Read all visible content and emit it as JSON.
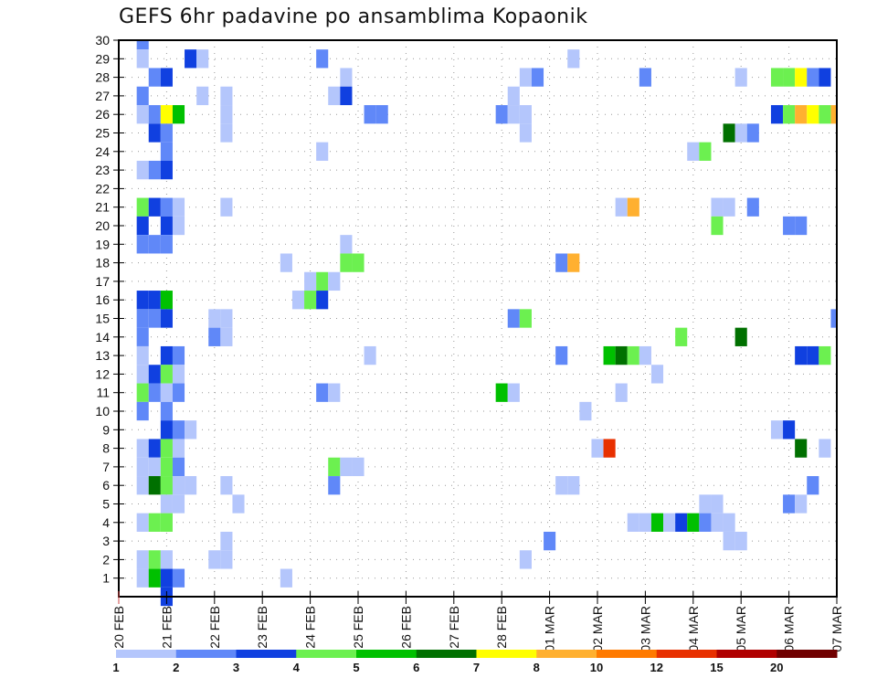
{
  "chart_data": {
    "type": "heatmap",
    "title": "GEFS 6hr padavine po ansamblima Kopaonik",
    "xlabel": "",
    "ylabel": "",
    "x_step_hours": 6,
    "x_ticks": [
      "20 FEB",
      "21 FEB",
      "22 FEB",
      "23 FEB",
      "24 FEB",
      "25 FEB",
      "26 FEB",
      "27 FEB",
      "28 FEB",
      "01 MAR",
      "02 MAR",
      "03 MAR",
      "04 MAR",
      "05 MAR",
      "06 MAR",
      "07 MAR"
    ],
    "y_ticks": [
      1,
      2,
      3,
      4,
      5,
      6,
      7,
      8,
      9,
      10,
      11,
      12,
      13,
      14,
      15,
      16,
      17,
      18,
      19,
      20,
      21,
      22,
      23,
      24,
      25,
      26,
      27,
      28,
      29,
      30
    ],
    "ylim": [
      0,
      30
    ],
    "xlim_steps": [
      0,
      60
    ],
    "grid": true,
    "legend": {
      "placement": "bottom",
      "levels": [
        "1",
        "2",
        "3",
        "4",
        "5",
        "6",
        "7",
        "8",
        "10",
        "12",
        "15",
        "20"
      ],
      "colors": [
        "#b4c6fc",
        "#6088f8",
        "#1040e0",
        "#6cf050",
        "#00c000",
        "#007000",
        "#ffff00",
        "#ffb030",
        "#ff7a00",
        "#e83000",
        "#b00000",
        "#700000"
      ]
    },
    "cells_note": "each cell: [6hr step from 20 FEB 00Z, ensemble member row, precipitation class lower bound]",
    "cells": [
      [
        2,
        30,
        2
      ],
      [
        2,
        29,
        1
      ],
      [
        6,
        29,
        3
      ],
      [
        7,
        29,
        1
      ],
      [
        17,
        29,
        2
      ],
      [
        38,
        29,
        1
      ],
      [
        3,
        28,
        2
      ],
      [
        4,
        28,
        3
      ],
      [
        19,
        28,
        1
      ],
      [
        34,
        28,
        1
      ],
      [
        35,
        28,
        2
      ],
      [
        44,
        28,
        2
      ],
      [
        52,
        28,
        1
      ],
      [
        55,
        28,
        4
      ],
      [
        56,
        28,
        4
      ],
      [
        57,
        28,
        7
      ],
      [
        58,
        28,
        2
      ],
      [
        59,
        28,
        3
      ],
      [
        2,
        27,
        2
      ],
      [
        7,
        27,
        1
      ],
      [
        9,
        27,
        1
      ],
      [
        18,
        27,
        1
      ],
      [
        19,
        27,
        3
      ],
      [
        33,
        27,
        1
      ],
      [
        2,
        26,
        1
      ],
      [
        3,
        26,
        2
      ],
      [
        4,
        26,
        7
      ],
      [
        5,
        26,
        5
      ],
      [
        9,
        26,
        1
      ],
      [
        21,
        26,
        2
      ],
      [
        22,
        26,
        2
      ],
      [
        32,
        26,
        2
      ],
      [
        33,
        26,
        1
      ],
      [
        34,
        26,
        1
      ],
      [
        55,
        26,
        3
      ],
      [
        56,
        26,
        4
      ],
      [
        57,
        26,
        8
      ],
      [
        58,
        26,
        7
      ],
      [
        59,
        26,
        4
      ],
      [
        60,
        26,
        8
      ],
      [
        3,
        25,
        3
      ],
      [
        4,
        25,
        2
      ],
      [
        9,
        25,
        1
      ],
      [
        34,
        25,
        1
      ],
      [
        51,
        25,
        6
      ],
      [
        52,
        25,
        1
      ],
      [
        53,
        25,
        2
      ],
      [
        4,
        24,
        2
      ],
      [
        17,
        24,
        1
      ],
      [
        48,
        24,
        1
      ],
      [
        49,
        24,
        4
      ],
      [
        2,
        23,
        1
      ],
      [
        3,
        23,
        2
      ],
      [
        4,
        23,
        3
      ],
      [
        2,
        21,
        4
      ],
      [
        3,
        21,
        3
      ],
      [
        4,
        21,
        2
      ],
      [
        5,
        21,
        1
      ],
      [
        9,
        21,
        1
      ],
      [
        42,
        21,
        1
      ],
      [
        43,
        21,
        8
      ],
      [
        50,
        21,
        1
      ],
      [
        51,
        21,
        1
      ],
      [
        53,
        21,
        2
      ],
      [
        2,
        20,
        3
      ],
      [
        4,
        20,
        3
      ],
      [
        5,
        20,
        1
      ],
      [
        50,
        20,
        4
      ],
      [
        56,
        20,
        2
      ],
      [
        57,
        20,
        2
      ],
      [
        2,
        19,
        2
      ],
      [
        3,
        19,
        2
      ],
      [
        4,
        19,
        2
      ],
      [
        19,
        19,
        1
      ],
      [
        14,
        18,
        1
      ],
      [
        19,
        18,
        4
      ],
      [
        20,
        18,
        4
      ],
      [
        37,
        18,
        2
      ],
      [
        38,
        18,
        8
      ],
      [
        16,
        17,
        1
      ],
      [
        17,
        17,
        4
      ],
      [
        18,
        17,
        1
      ],
      [
        2,
        16,
        3
      ],
      [
        3,
        16,
        3
      ],
      [
        4,
        16,
        5
      ],
      [
        15,
        16,
        1
      ],
      [
        16,
        16,
        4
      ],
      [
        17,
        16,
        3
      ],
      [
        2,
        15,
        2
      ],
      [
        3,
        15,
        2
      ],
      [
        4,
        15,
        3
      ],
      [
        8,
        15,
        1
      ],
      [
        9,
        15,
        1
      ],
      [
        33,
        15,
        2
      ],
      [
        34,
        15,
        4
      ],
      [
        60,
        15,
        2
      ],
      [
        2,
        14,
        2
      ],
      [
        8,
        14,
        2
      ],
      [
        9,
        14,
        1
      ],
      [
        47,
        14,
        4
      ],
      [
        52,
        14,
        6
      ],
      [
        2,
        13,
        1
      ],
      [
        4,
        13,
        3
      ],
      [
        5,
        13,
        2
      ],
      [
        21,
        13,
        1
      ],
      [
        37,
        13,
        2
      ],
      [
        41,
        13,
        5
      ],
      [
        42,
        13,
        6
      ],
      [
        43,
        13,
        4
      ],
      [
        44,
        13,
        1
      ],
      [
        57,
        13,
        3
      ],
      [
        58,
        13,
        3
      ],
      [
        59,
        13,
        4
      ],
      [
        2,
        12,
        1
      ],
      [
        3,
        12,
        3
      ],
      [
        4,
        12,
        4
      ],
      [
        5,
        12,
        1
      ],
      [
        45,
        12,
        1
      ],
      [
        2,
        11,
        4
      ],
      [
        3,
        11,
        2
      ],
      [
        4,
        11,
        1
      ],
      [
        5,
        11,
        2
      ],
      [
        17,
        11,
        2
      ],
      [
        18,
        11,
        1
      ],
      [
        32,
        11,
        5
      ],
      [
        33,
        11,
        1
      ],
      [
        42,
        11,
        1
      ],
      [
        2,
        10,
        2
      ],
      [
        4,
        10,
        2
      ],
      [
        39,
        10,
        1
      ],
      [
        4,
        9,
        3
      ],
      [
        5,
        9,
        2
      ],
      [
        6,
        9,
        1
      ],
      [
        55,
        9,
        1
      ],
      [
        56,
        9,
        3
      ],
      [
        2,
        8,
        1
      ],
      [
        3,
        8,
        3
      ],
      [
        4,
        8,
        4
      ],
      [
        5,
        8,
        1
      ],
      [
        40,
        8,
        1
      ],
      [
        41,
        8,
        12
      ],
      [
        57,
        8,
        6
      ],
      [
        59,
        8,
        1
      ],
      [
        2,
        7,
        1
      ],
      [
        3,
        7,
        1
      ],
      [
        4,
        7,
        4
      ],
      [
        5,
        7,
        2
      ],
      [
        18,
        7,
        4
      ],
      [
        19,
        7,
        1
      ],
      [
        20,
        7,
        1
      ],
      [
        2,
        6,
        1
      ],
      [
        3,
        6,
        6
      ],
      [
        4,
        6,
        4
      ],
      [
        5,
        6,
        1
      ],
      [
        6,
        6,
        1
      ],
      [
        9,
        6,
        1
      ],
      [
        18,
        6,
        2
      ],
      [
        37,
        6,
        1
      ],
      [
        38,
        6,
        1
      ],
      [
        58,
        6,
        2
      ],
      [
        4,
        5,
        1
      ],
      [
        5,
        5,
        1
      ],
      [
        10,
        5,
        1
      ],
      [
        49,
        5,
        1
      ],
      [
        50,
        5,
        1
      ],
      [
        56,
        5,
        2
      ],
      [
        57,
        5,
        1
      ],
      [
        2,
        4,
        1
      ],
      [
        3,
        4,
        4
      ],
      [
        4,
        4,
        4
      ],
      [
        43,
        4,
        1
      ],
      [
        44,
        4,
        1
      ],
      [
        45,
        4,
        5
      ],
      [
        46,
        4,
        1
      ],
      [
        47,
        4,
        3
      ],
      [
        48,
        4,
        5
      ],
      [
        49,
        4,
        2
      ],
      [
        50,
        4,
        1
      ],
      [
        51,
        4,
        1
      ],
      [
        9,
        3,
        1
      ],
      [
        36,
        3,
        2
      ],
      [
        51,
        3,
        1
      ],
      [
        52,
        3,
        1
      ],
      [
        2,
        2,
        1
      ],
      [
        3,
        2,
        4
      ],
      [
        4,
        2,
        1
      ],
      [
        8,
        2,
        1
      ],
      [
        9,
        2,
        1
      ],
      [
        34,
        2,
        1
      ],
      [
        2,
        1,
        1
      ],
      [
        3,
        1,
        5
      ],
      [
        4,
        1,
        3
      ],
      [
        5,
        1,
        2
      ],
      [
        14,
        1,
        1
      ],
      [
        4,
        0,
        3
      ]
    ]
  }
}
